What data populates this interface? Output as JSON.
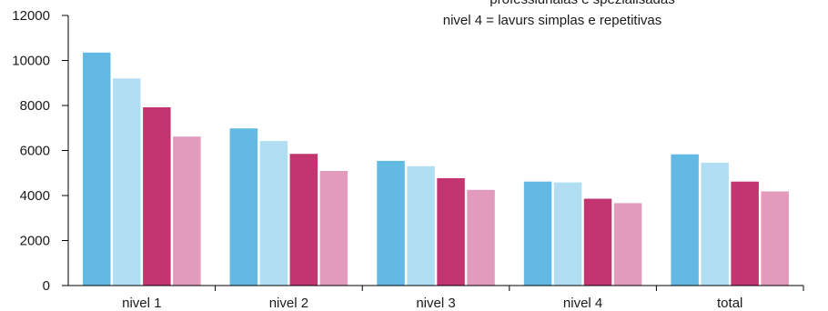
{
  "chart_data": {
    "type": "bar",
    "title": "",
    "xlabel": "",
    "ylabel": "",
    "ylim": [
      0,
      12000
    ],
    "y_ticks": [
      0,
      2000,
      4000,
      6000,
      8000,
      10000,
      12000
    ],
    "y_tick_labels": [
      "0",
      "2000",
      "4000",
      "6000",
      "8000",
      "10000",
      "12000"
    ],
    "grid": false,
    "categories": [
      "nivel 1",
      "nivel 2",
      "nivel 3",
      "nivel 4",
      "total"
    ],
    "series": [
      {
        "color": "#62b9e4",
        "values": [
          10350,
          6980,
          5540,
          4620,
          5830
        ]
      },
      {
        "color": "#b1def2",
        "values": [
          9200,
          6420,
          5300,
          4580,
          5460
        ]
      },
      {
        "color": "#c33571",
        "values": [
          7920,
          5850,
          4770,
          3860,
          4620
        ]
      },
      {
        "color": "#e29bbd",
        "values": [
          6620,
          5090,
          4250,
          3660,
          4180
        ]
      }
    ],
    "annotations": [
      "professiunalas e spezialisadas",
      "nivel 4 = lavurs simplas e repetitivas"
    ]
  }
}
